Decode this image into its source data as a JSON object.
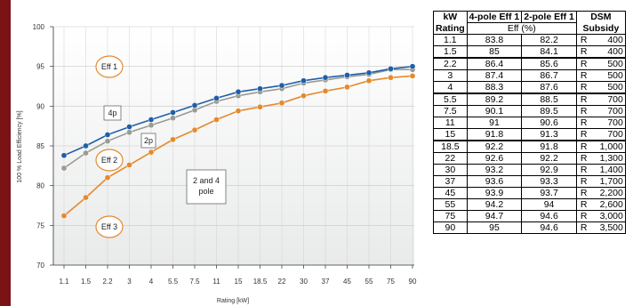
{
  "chart_data": {
    "type": "line",
    "title": "",
    "xlabel": "Rating [kW]",
    "ylabel": "100 % Load Efficiency [%]",
    "ylim": [
      70,
      100
    ],
    "yticks": [
      70,
      75,
      80,
      85,
      90,
      95,
      100
    ],
    "grid": true,
    "categories": [
      "1.1",
      "1.5",
      "2.2",
      "3",
      "4",
      "5.5",
      "7.5",
      "11",
      "15",
      "18.5",
      "22",
      "30",
      "37",
      "45",
      "55",
      "75",
      "90"
    ],
    "series": [
      {
        "name": "4p",
        "color": "#1f5fa8",
        "values": [
          83.8,
          85,
          86.4,
          87.4,
          88.3,
          89.2,
          90.1,
          91,
          91.8,
          92.2,
          92.6,
          93.2,
          93.6,
          93.9,
          94.2,
          94.7,
          95
        ]
      },
      {
        "name": "2p",
        "color": "#9a9a92",
        "values": [
          82.2,
          84.1,
          85.6,
          86.7,
          87.6,
          88.5,
          89.5,
          90.6,
          91.3,
          91.8,
          92.2,
          92.9,
          93.3,
          93.7,
          94,
          94.6,
          94.6
        ]
      },
      {
        "name": "2 and 4 pole",
        "color": "#e58a2c",
        "values": [
          76.2,
          78.5,
          81,
          82.6,
          84.2,
          85.8,
          87,
          88.3,
          89.4,
          89.9,
          90.4,
          91.3,
          91.9,
          92.4,
          93.2,
          93.6,
          93.8
        ]
      }
    ],
    "annotations": [
      "Eff 1",
      "4p",
      "2p",
      "Eff 2",
      "2 and 4\npole",
      "Eff 3"
    ]
  },
  "table": {
    "headers": {
      "rating_top": "kW",
      "rating_bottom": "Rating",
      "eff4": "4-pole Eff 1",
      "eff2": "2-pole Eff 1",
      "eff_unit": "Eff (%)",
      "dsm_top": "DSM",
      "dsm_bottom": "Subsidy"
    },
    "rows": [
      {
        "kw": "1.1",
        "e4": "83.8",
        "e2": "82.2",
        "cur": "R",
        "amt": "400"
      },
      {
        "kw": "1.5",
        "e4": "85",
        "e2": "84.1",
        "cur": "R",
        "amt": "400"
      },
      {
        "kw": "2.2",
        "e4": "86.4",
        "e2": "85.6",
        "cur": "R",
        "amt": "500"
      },
      {
        "kw": "3",
        "e4": "87.4",
        "e2": "86.7",
        "cur": "R",
        "amt": "500"
      },
      {
        "kw": "4",
        "e4": "88.3",
        "e2": "87.6",
        "cur": "R",
        "amt": "500"
      },
      {
        "kw": "5.5",
        "e4": "89.2",
        "e2": "88.5",
        "cur": "R",
        "amt": "700"
      },
      {
        "kw": "7.5",
        "e4": "90.1",
        "e2": "89.5",
        "cur": "R",
        "amt": "700"
      },
      {
        "kw": "11",
        "e4": "91",
        "e2": "90.6",
        "cur": "R",
        "amt": "700"
      },
      {
        "kw": "15",
        "e4": "91.8",
        "e2": "91.3",
        "cur": "R",
        "amt": "700"
      },
      {
        "kw": "18.5",
        "e4": "92.2",
        "e2": "91.8",
        "cur": "R",
        "amt": "1,000"
      },
      {
        "kw": "22",
        "e4": "92.6",
        "e2": "92.2",
        "cur": "R",
        "amt": "1,300"
      },
      {
        "kw": "30",
        "e4": "93.2",
        "e2": "92.9",
        "cur": "R",
        "amt": "1,400"
      },
      {
        "kw": "37",
        "e4": "93.6",
        "e2": "93.3",
        "cur": "R",
        "amt": "1,700"
      },
      {
        "kw": "45",
        "e4": "93.9",
        "e2": "93.7",
        "cur": "R",
        "amt": "2,200"
      },
      {
        "kw": "55",
        "e4": "94.2",
        "e2": "94",
        "cur": "R",
        "amt": "2,600"
      },
      {
        "kw": "75",
        "e4": "94.7",
        "e2": "94.6",
        "cur": "R",
        "amt": "3,000"
      },
      {
        "kw": "90",
        "e4": "95",
        "e2": "94.6",
        "cur": "R",
        "amt": "3,500"
      }
    ]
  }
}
